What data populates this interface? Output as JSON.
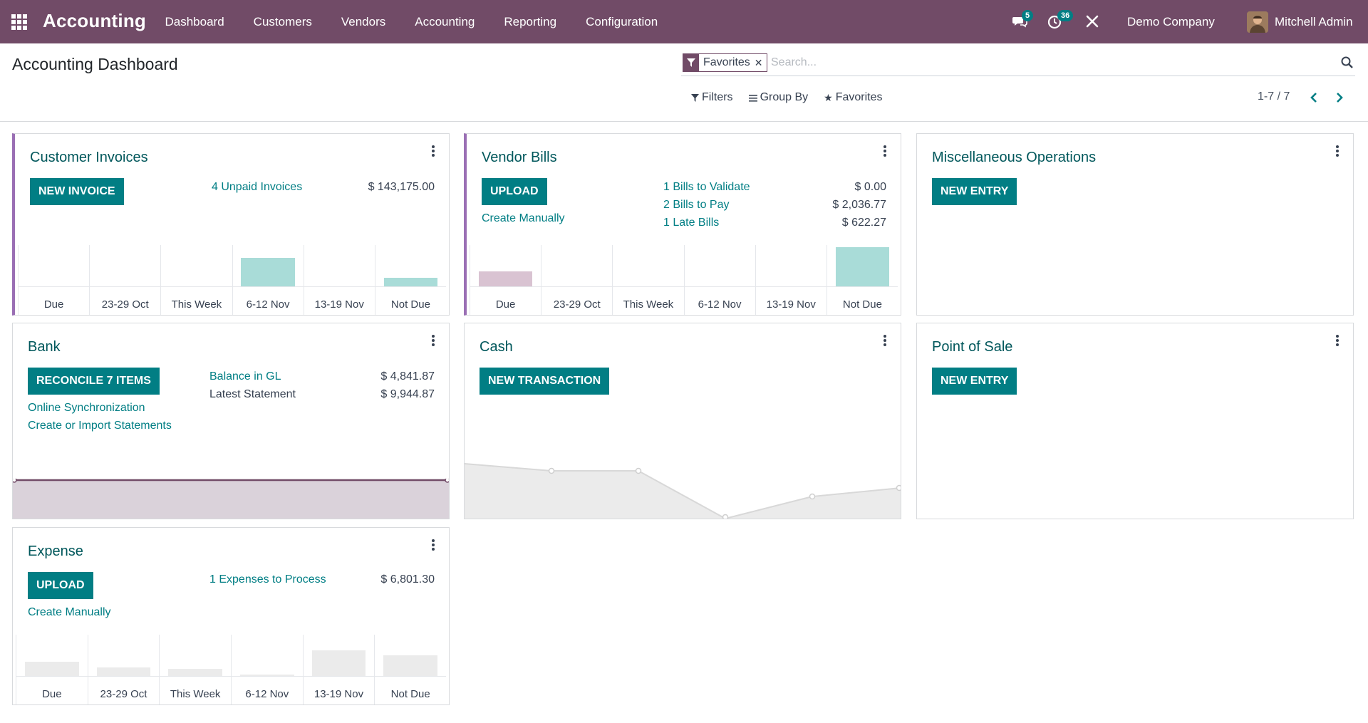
{
  "navbar": {
    "brand": "Accounting",
    "menu": [
      "Dashboard",
      "Customers",
      "Vendors",
      "Accounting",
      "Reporting",
      "Configuration"
    ],
    "messages_count": "5",
    "activities_count": "36",
    "company": "Demo Company",
    "user": "Mitchell Admin"
  },
  "control_panel": {
    "title": "Accounting Dashboard",
    "facet": "Favorites",
    "search_placeholder": "Search...",
    "filters_label": "Filters",
    "group_by_label": "Group By",
    "favorites_label": "Favorites",
    "pager": "1-7 / 7"
  },
  "cards": {
    "customer_invoices": {
      "title": "Customer Invoices",
      "button": "New Invoice",
      "link": "4 Unpaid Invoices",
      "amount": "$ 143,175.00",
      "chart_labels": [
        "Due",
        "23-29 Oct",
        "This Week",
        "6-12 Nov",
        "13-19 Nov",
        "Not Due"
      ],
      "chart_values": [
        0,
        0,
        0,
        0.72,
        0,
        0.22
      ]
    },
    "vendor_bills": {
      "title": "Vendor Bills",
      "button": "Upload",
      "link_create": "Create Manually",
      "lines": [
        {
          "label": "1 Bills to Validate",
          "amount": "$ 0.00"
        },
        {
          "label": "2 Bills to Pay",
          "amount": "$ 2,036.77"
        },
        {
          "label": "1 Late Bills",
          "amount": "$ 622.27"
        }
      ],
      "chart_labels": [
        "Due",
        "23-29 Oct",
        "This Week",
        "6-12 Nov",
        "13-19 Nov",
        "Not Due"
      ],
      "chart_values": [
        0.38,
        0,
        0,
        0,
        0,
        0.98
      ]
    },
    "misc": {
      "title": "Miscellaneous Operations",
      "button": "New Entry"
    },
    "bank": {
      "title": "Bank",
      "button": "Reconcile 7 Items",
      "link_sync": "Online Synchronization",
      "link_import": "Create or Import Statements",
      "gl_label": "Balance in GL",
      "gl_amount": "$ 4,841.87",
      "stmt_label": "Latest Statement",
      "stmt_amount": "$ 9,944.87"
    },
    "cash": {
      "title": "Cash",
      "button": "New Transaction"
    },
    "pos": {
      "title": "Point of Sale",
      "button": "New Entry"
    },
    "expense": {
      "title": "Expense",
      "button": "Upload",
      "link_create": "Create Manually",
      "link": "1 Expenses to Process",
      "amount": "$ 6,801.30",
      "chart_labels": [
        "Due",
        "23-29 Oct",
        "This Week",
        "6-12 Nov",
        "13-19 Nov",
        "Not Due"
      ],
      "chart_values": [
        0.36,
        0.22,
        0.18,
        0.03,
        0.65,
        0.52
      ]
    }
  },
  "colors": {
    "brand": "#714B67",
    "primary": "#017e84",
    "invoice_bar": "#a9dcd8",
    "late_bar": "#d9c3d2",
    "expense_bar": "#ebebeb"
  }
}
